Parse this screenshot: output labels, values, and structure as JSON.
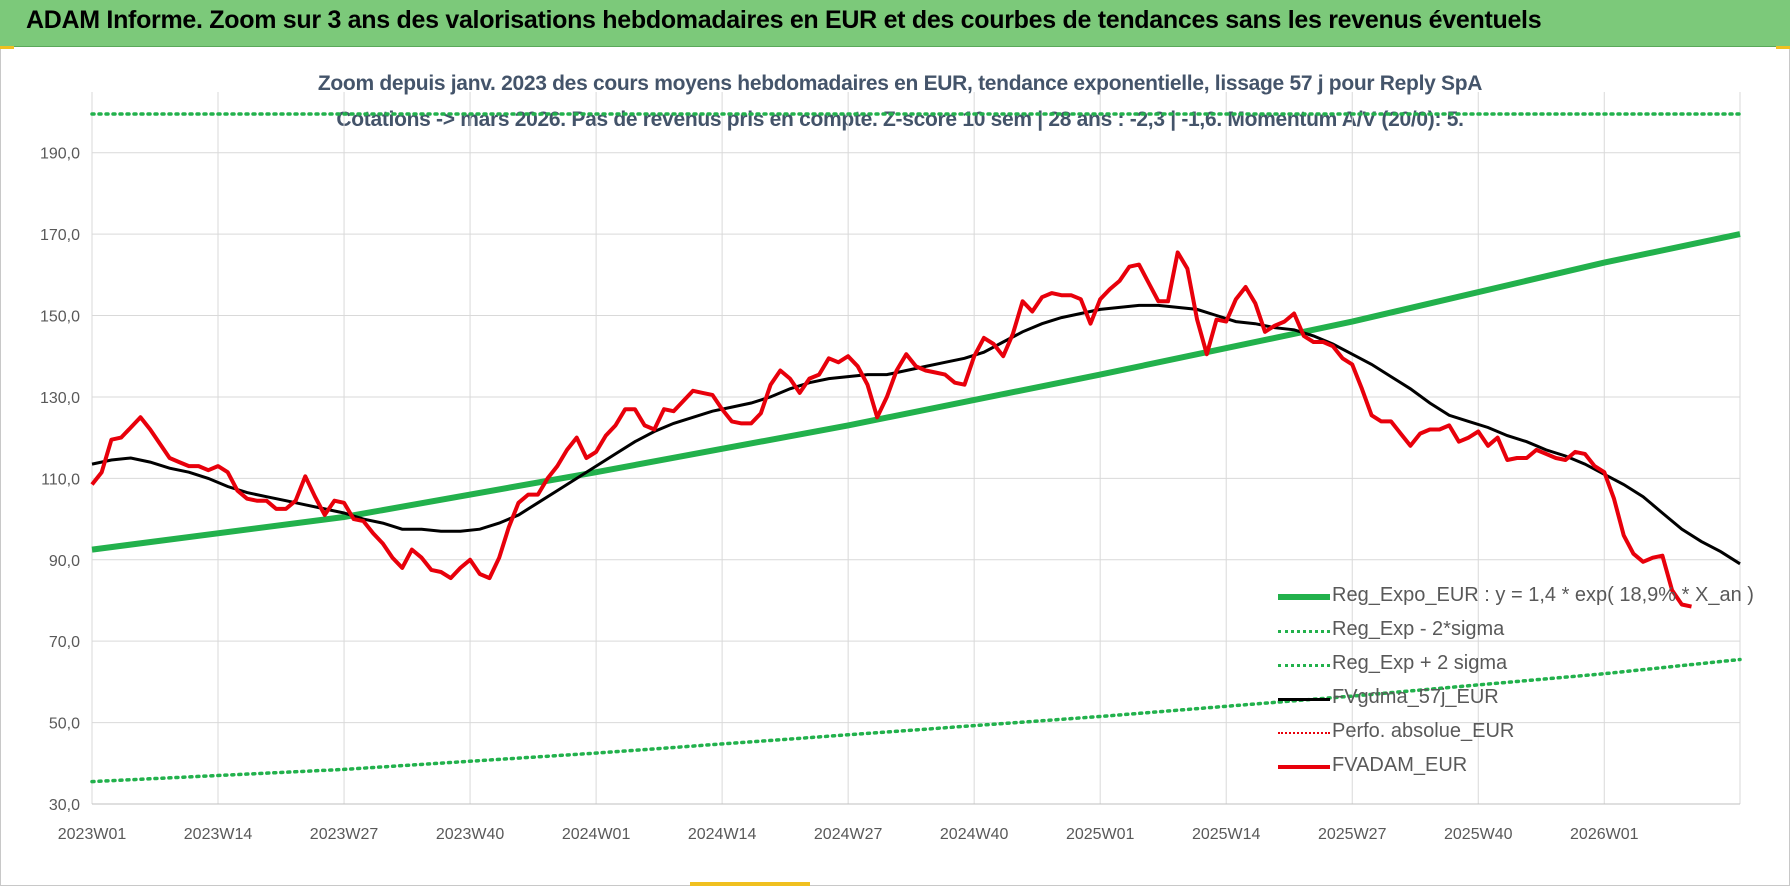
{
  "header": {
    "title": "ADAM Informe. Zoom sur 3 ans des valorisations hebdomadaires en EUR et des courbes de tendances sans les revenus éventuels"
  },
  "colors": {
    "header_bg": "#7cc97a",
    "trend": "#22b14c",
    "sigma": "#22b14c",
    "smooth": "#000000",
    "price": "#e8000b",
    "perfo": "#e8000b",
    "title_text": "#44546a",
    "grid": "#d9d9d9"
  },
  "chart_data": {
    "type": "line",
    "title_line1": "Zoom depuis janv. 2023 des cours moyens hebdomadaires en EUR, tendance exponentielle, lissage 57 j pour Reply SpA",
    "title_line2": "Cotations -> mars 2026. Pas de revenus pris en compte. Z-score 10 sem | 28 ans : -2,3 | -1,6. Momentum A/V (20/0): 5.",
    "ylim": [
      30,
      200
    ],
    "y_ticks": [
      "30,0",
      "50,0",
      "70,0",
      "90,0",
      "110,0",
      "130,0",
      "150,0",
      "170,0",
      "190,0"
    ],
    "y_tick_values": [
      30,
      50,
      70,
      90,
      110,
      130,
      150,
      170,
      190
    ],
    "x_tick_labels": [
      "2023W01",
      "2023W14",
      "2023W27",
      "2023W40",
      "2024W01",
      "2024W14",
      "2024W27",
      "2024W40",
      "2025W01",
      "2025W14",
      "2025W27",
      "2025W40",
      "2026W01"
    ],
    "x_tick_weeks": [
      0,
      13,
      26,
      39,
      52,
      65,
      78,
      91,
      104,
      117,
      130,
      143,
      156
    ],
    "x_max_week": 170,
    "legend_position": "bottom-right",
    "grid": true,
    "series": [
      {
        "name": "Reg_Expo_EUR : y = 1,4 * exp( 18,9% *  X_an )",
        "style": "trend",
        "points": [
          [
            0,
            92.5
          ],
          [
            26,
            100.5
          ],
          [
            52,
            111.5
          ],
          [
            78,
            123
          ],
          [
            104,
            135.5
          ],
          [
            130,
            148.5
          ],
          [
            156,
            163
          ],
          [
            170,
            170
          ]
        ]
      },
      {
        "name": "Reg_Exp - 2*sigma",
        "style": "sigma",
        "points": [
          [
            0,
            35.5
          ],
          [
            26,
            38.5
          ],
          [
            52,
            42.5
          ],
          [
            78,
            47
          ],
          [
            104,
            51.5
          ],
          [
            130,
            56.5
          ],
          [
            156,
            62
          ],
          [
            170,
            65.5
          ]
        ]
      },
      {
        "name": "Reg_Exp + 2 sigma",
        "style": "sigma",
        "points": [
          [
            0,
            199.5
          ],
          [
            170,
            199.5
          ]
        ]
      },
      {
        "name": "FVgdma_57j_EUR",
        "style": "smooth",
        "points": [
          [
            0,
            113.5
          ],
          [
            2,
            114.5
          ],
          [
            4,
            115
          ],
          [
            6,
            114
          ],
          [
            8,
            112.5
          ],
          [
            10,
            111.5
          ],
          [
            12,
            110
          ],
          [
            14,
            108
          ],
          [
            16,
            106.5
          ],
          [
            18,
            105.5
          ],
          [
            20,
            104.5
          ],
          [
            22,
            103.5
          ],
          [
            24,
            102.5
          ],
          [
            26,
            101.5
          ],
          [
            28,
            100
          ],
          [
            30,
            99
          ],
          [
            32,
            97.5
          ],
          [
            34,
            97.5
          ],
          [
            36,
            97
          ],
          [
            38,
            97
          ],
          [
            40,
            97.5
          ],
          [
            42,
            99
          ],
          [
            44,
            101
          ],
          [
            46,
            104
          ],
          [
            48,
            107
          ],
          [
            50,
            110
          ],
          [
            52,
            113
          ],
          [
            54,
            116
          ],
          [
            56,
            119
          ],
          [
            58,
            121.5
          ],
          [
            60,
            123.5
          ],
          [
            62,
            125
          ],
          [
            64,
            126.5
          ],
          [
            66,
            127.5
          ],
          [
            68,
            128.5
          ],
          [
            70,
            130
          ],
          [
            72,
            132
          ],
          [
            74,
            133.5
          ],
          [
            76,
            134.5
          ],
          [
            78,
            135
          ],
          [
            80,
            135.5
          ],
          [
            82,
            135.5
          ],
          [
            84,
            136.5
          ],
          [
            86,
            137.5
          ],
          [
            88,
            138.5
          ],
          [
            90,
            139.5
          ],
          [
            92,
            141
          ],
          [
            94,
            143.5
          ],
          [
            96,
            146
          ],
          [
            98,
            148
          ],
          [
            100,
            149.5
          ],
          [
            102,
            150.5
          ],
          [
            104,
            151.5
          ],
          [
            106,
            152
          ],
          [
            108,
            152.5
          ],
          [
            110,
            152.5
          ],
          [
            112,
            152
          ],
          [
            114,
            151.5
          ],
          [
            116,
            150
          ],
          [
            118,
            148.5
          ],
          [
            120,
            148
          ],
          [
            122,
            147
          ],
          [
            124,
            146.5
          ],
          [
            126,
            145
          ],
          [
            128,
            143
          ],
          [
            130,
            140.5
          ],
          [
            132,
            138
          ],
          [
            134,
            135
          ],
          [
            136,
            132
          ],
          [
            138,
            128.5
          ],
          [
            140,
            125.5
          ],
          [
            142,
            124
          ],
          [
            144,
            122.5
          ],
          [
            146,
            120.5
          ],
          [
            148,
            119
          ],
          [
            150,
            117
          ],
          [
            152,
            115.5
          ],
          [
            154,
            113.5
          ],
          [
            156,
            111
          ],
          [
            158,
            108.5
          ],
          [
            160,
            105.5
          ],
          [
            162,
            101.5
          ],
          [
            164,
            97.5
          ],
          [
            166,
            94.5
          ],
          [
            168,
            92
          ],
          [
            170,
            89
          ]
        ]
      },
      {
        "name": "Perfo. absolue_EUR",
        "style": "perfo",
        "points": []
      },
      {
        "name": "FVADAM_EUR",
        "style": "price",
        "points": [
          [
            0,
            108.5
          ],
          [
            1,
            111.5
          ],
          [
            2,
            119.5
          ],
          [
            3,
            120
          ],
          [
            4,
            122.5
          ],
          [
            5,
            125
          ],
          [
            6,
            122
          ],
          [
            7,
            118.5
          ],
          [
            8,
            115
          ],
          [
            9,
            114
          ],
          [
            10,
            113
          ],
          [
            11,
            113
          ],
          [
            12,
            112
          ],
          [
            13,
            113
          ],
          [
            14,
            111.5
          ],
          [
            15,
            107
          ],
          [
            16,
            105
          ],
          [
            17,
            104.5
          ],
          [
            18,
            104.5
          ],
          [
            19,
            102.5
          ],
          [
            20,
            102.5
          ],
          [
            21,
            104.5
          ],
          [
            22,
            110.5
          ],
          [
            23,
            105.5
          ],
          [
            24,
            101
          ],
          [
            25,
            104.5
          ],
          [
            26,
            104
          ],
          [
            27,
            100
          ],
          [
            28,
            99.5
          ],
          [
            29,
            96.5
          ],
          [
            30,
            94
          ],
          [
            31,
            90.5
          ],
          [
            32,
            88
          ],
          [
            33,
            92.5
          ],
          [
            34,
            90.5
          ],
          [
            35,
            87.5
          ],
          [
            36,
            87
          ],
          [
            37,
            85.5
          ],
          [
            38,
            88
          ],
          [
            39,
            90
          ],
          [
            40,
            86.5
          ],
          [
            41,
            85.5
          ],
          [
            42,
            90.5
          ],
          [
            43,
            98
          ],
          [
            44,
            104
          ],
          [
            45,
            106
          ],
          [
            46,
            106
          ],
          [
            47,
            110
          ],
          [
            48,
            113
          ],
          [
            49,
            117
          ],
          [
            50,
            120
          ],
          [
            51,
            115
          ],
          [
            52,
            116.5
          ],
          [
            53,
            120.5
          ],
          [
            54,
            123
          ],
          [
            55,
            127
          ],
          [
            56,
            127
          ],
          [
            57,
            123
          ],
          [
            58,
            122
          ],
          [
            59,
            127
          ],
          [
            60,
            126.5
          ],
          [
            61,
            129
          ],
          [
            62,
            131.5
          ],
          [
            63,
            131
          ],
          [
            64,
            130.5
          ],
          [
            65,
            127
          ],
          [
            66,
            124
          ],
          [
            67,
            123.5
          ],
          [
            68,
            123.5
          ],
          [
            69,
            126
          ],
          [
            70,
            133
          ],
          [
            71,
            136.5
          ],
          [
            72,
            134.5
          ],
          [
            73,
            131
          ],
          [
            74,
            134.5
          ],
          [
            75,
            135.5
          ],
          [
            76,
            139.5
          ],
          [
            77,
            138.5
          ],
          [
            78,
            140
          ],
          [
            79,
            137.5
          ],
          [
            80,
            133
          ],
          [
            81,
            125
          ],
          [
            82,
            130
          ],
          [
            83,
            136.5
          ],
          [
            84,
            140.5
          ],
          [
            85,
            137.5
          ],
          [
            86,
            136.5
          ],
          [
            87,
            136
          ],
          [
            88,
            135.5
          ],
          [
            89,
            133.5
          ],
          [
            90,
            133
          ],
          [
            91,
            140
          ],
          [
            92,
            144.5
          ],
          [
            93,
            143
          ],
          [
            94,
            140
          ],
          [
            95,
            145.5
          ],
          [
            96,
            153.5
          ],
          [
            97,
            151
          ],
          [
            98,
            154.5
          ],
          [
            99,
            155.5
          ],
          [
            100,
            155
          ],
          [
            101,
            155
          ],
          [
            102,
            154
          ],
          [
            103,
            148
          ],
          [
            104,
            154
          ],
          [
            105,
            156.5
          ],
          [
            106,
            158.5
          ],
          [
            107,
            162
          ],
          [
            108,
            162.5
          ],
          [
            109,
            158
          ],
          [
            110,
            153.5
          ],
          [
            111,
            153.5
          ],
          [
            112,
            165.5
          ],
          [
            113,
            161.5
          ],
          [
            114,
            149
          ],
          [
            115,
            140.5
          ],
          [
            116,
            149
          ],
          [
            117,
            148.5
          ],
          [
            118,
            154
          ],
          [
            119,
            157
          ],
          [
            120,
            153
          ],
          [
            121,
            146
          ],
          [
            122,
            147.5
          ],
          [
            123,
            148.5
          ],
          [
            124,
            150.5
          ],
          [
            125,
            145
          ],
          [
            126,
            143.5
          ],
          [
            127,
            143.5
          ],
          [
            128,
            142.5
          ],
          [
            129,
            139.5
          ],
          [
            130,
            138
          ],
          [
            131,
            132
          ],
          [
            132,
            125.5
          ],
          [
            133,
            124
          ],
          [
            134,
            124
          ],
          [
            135,
            121
          ],
          [
            136,
            118
          ],
          [
            137,
            121
          ],
          [
            138,
            122
          ],
          [
            139,
            122
          ],
          [
            140,
            123
          ],
          [
            141,
            119
          ],
          [
            142,
            120
          ],
          [
            143,
            121.5
          ],
          [
            144,
            118
          ],
          [
            145,
            120
          ],
          [
            146,
            114.5
          ],
          [
            147,
            115
          ],
          [
            148,
            115
          ],
          [
            149,
            117
          ],
          [
            150,
            116
          ],
          [
            151,
            115
          ],
          [
            152,
            114.5
          ],
          [
            153,
            116.5
          ],
          [
            154,
            116
          ],
          [
            155,
            113
          ],
          [
            156,
            111.5
          ],
          [
            157,
            105
          ],
          [
            158,
            96
          ],
          [
            159,
            91.5
          ],
          [
            160,
            89.5
          ],
          [
            161,
            90.5
          ],
          [
            162,
            91
          ],
          [
            163,
            82.5
          ],
          [
            164,
            79
          ],
          [
            165,
            78.5
          ]
        ]
      }
    ]
  }
}
